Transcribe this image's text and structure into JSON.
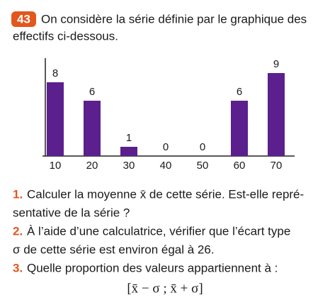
{
  "exercise": {
    "number": "43",
    "lines": [
      "On considère la série définie par le graphique des",
      "effectifs ci-dessous."
    ]
  },
  "chart_data": {
    "type": "bar",
    "categories": [
      "10",
      "20",
      "30",
      "40",
      "50",
      "60",
      "70"
    ],
    "values": [
      8,
      6,
      1,
      0,
      0,
      6,
      9
    ],
    "color": "#5b1f8e"
  },
  "questions": [
    {
      "number": "1.",
      "lines": [
        "Calculer la moyenne x̄ de cette série. Est-elle repré-",
        "sentative de la série ?"
      ]
    },
    {
      "number": "2.",
      "lines": [
        "À l’aide d’une calculatrice, vérifier que l’écart type",
        "σ de cette série est environ égal à 26."
      ]
    },
    {
      "number": "3.",
      "lines": [
        "Quelle proportion des valeurs appartiennent à :"
      ]
    }
  ],
  "formula": "[x̄ − σ ; x̄ + σ]"
}
